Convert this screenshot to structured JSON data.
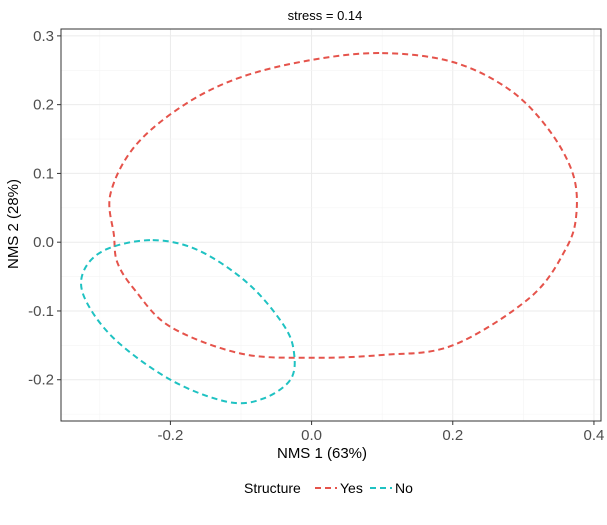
{
  "chart_data": {
    "type": "scatter",
    "title": "stress = 0.14",
    "xlabel": "NMS 1 (63%)",
    "ylabel": "NMS 2 (28%)",
    "xlim": [
      -0.355,
      0.41
    ],
    "ylim": [
      -0.26,
      0.31
    ],
    "x_ticks": [
      -0.2,
      0.0,
      0.2,
      0.4
    ],
    "x_tick_labels": [
      "-0.2",
      "0.0",
      "0.2",
      "0.4"
    ],
    "y_ticks": [
      -0.2,
      -0.1,
      0.0,
      0.1,
      0.2,
      0.3
    ],
    "y_tick_labels": [
      "-0.2",
      "-0.1",
      "0.0",
      "0.1",
      "0.2",
      "0.3"
    ],
    "grid": true,
    "legend": {
      "title": "Structure",
      "placement": "bottom"
    },
    "series": [
      {
        "name": "Yes",
        "color": "#e5534b",
        "geometry": "ellipse",
        "line_style": "dashed",
        "points": [
          [
            0.1,
            0.275
          ],
          [
            0.2,
            0.262
          ],
          [
            0.28,
            0.222
          ],
          [
            0.335,
            0.165
          ],
          [
            0.37,
            0.1
          ],
          [
            0.375,
            0.04
          ],
          [
            0.36,
            -0.01
          ],
          [
            0.31,
            -0.08
          ],
          [
            0.2,
            -0.15
          ],
          [
            0.1,
            -0.164
          ],
          [
            0.0,
            -0.168
          ],
          [
            -0.1,
            -0.162
          ],
          [
            -0.2,
            -0.123
          ],
          [
            -0.25,
            -0.07
          ],
          [
            -0.275,
            -0.03
          ],
          [
            -0.28,
            0.01
          ],
          [
            -0.285,
            0.07
          ],
          [
            -0.25,
            0.14
          ],
          [
            -0.18,
            0.2
          ],
          [
            -0.1,
            0.24
          ],
          [
            0.0,
            0.265
          ],
          [
            0.1,
            0.275
          ]
        ]
      },
      {
        "name": "No",
        "color": "#1fc2c2",
        "geometry": "ellipse",
        "line_style": "dashed",
        "points": [
          [
            -0.225,
            0.003
          ],
          [
            -0.16,
            -0.012
          ],
          [
            -0.09,
            -0.06
          ],
          [
            -0.04,
            -0.12
          ],
          [
            -0.025,
            -0.16
          ],
          [
            -0.03,
            -0.2
          ],
          [
            -0.07,
            -0.228
          ],
          [
            -0.12,
            -0.232
          ],
          [
            -0.2,
            -0.2
          ],
          [
            -0.28,
            -0.14
          ],
          [
            -0.322,
            -0.08
          ],
          [
            -0.322,
            -0.04
          ],
          [
            -0.29,
            -0.01
          ],
          [
            -0.225,
            0.003
          ]
        ]
      }
    ]
  }
}
